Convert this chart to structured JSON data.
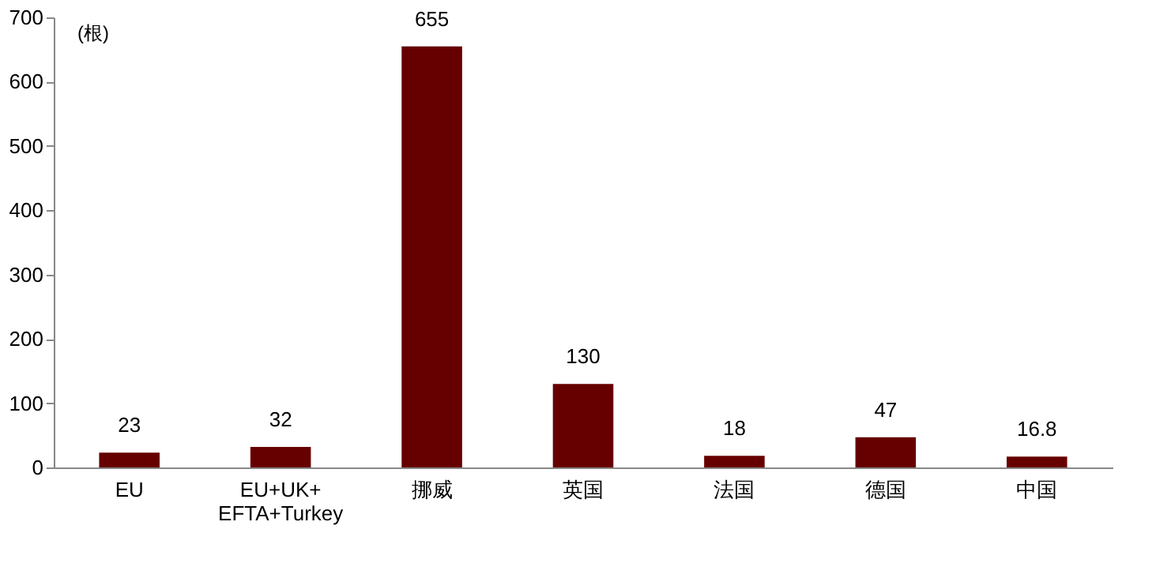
{
  "chart_data": {
    "type": "bar",
    "categories": [
      "EU",
      "EU+UK+\nEFTA+Turkey",
      "挪威",
      "英国",
      "法国",
      "德国",
      "中国"
    ],
    "values": [
      23,
      32,
      655,
      130,
      18,
      47,
      16.8
    ],
    "color": "#660000",
    "ylim": [
      0,
      700
    ],
    "yticks": [
      0,
      100,
      200,
      300,
      400,
      500,
      600,
      700
    ],
    "annotations": [
      "(根)"
    ],
    "data_labels": true,
    "grid": false
  }
}
